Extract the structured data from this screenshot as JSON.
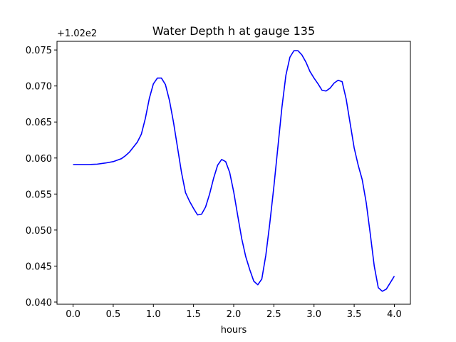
{
  "chart_data": {
    "type": "line",
    "title": "Water Depth h at gauge 135",
    "xlabel": "hours",
    "ylabel": "",
    "y_offset_text": "+1.02e2",
    "xlim": [
      -0.2,
      4.2
    ],
    "ylim": [
      0.0397,
      0.0762
    ],
    "xticks": [
      0.0,
      0.5,
      1.0,
      1.5,
      2.0,
      2.5,
      3.0,
      3.5,
      4.0
    ],
    "xtick_labels": [
      "0.0",
      "0.5",
      "1.0",
      "1.5",
      "2.0",
      "2.5",
      "3.0",
      "3.5",
      "4.0"
    ],
    "yticks": [
      0.04,
      0.045,
      0.05,
      0.055,
      0.06,
      0.065,
      0.07,
      0.075
    ],
    "ytick_labels": [
      "0.040",
      "0.045",
      "0.050",
      "0.055",
      "0.060",
      "0.065",
      "0.070",
      "0.075"
    ],
    "grid": false,
    "line_color": "#0000ff",
    "series": [
      {
        "x": [
          0.0,
          0.1,
          0.2,
          0.3,
          0.4,
          0.5,
          0.6,
          0.65,
          0.7,
          0.75,
          0.8,
          0.85,
          0.9,
          0.95,
          1.0,
          1.05,
          1.1,
          1.15,
          1.2,
          1.25,
          1.3,
          1.35,
          1.4,
          1.45,
          1.5,
          1.55,
          1.6,
          1.65,
          1.7,
          1.75,
          1.8,
          1.85,
          1.9,
          1.95,
          2.0,
          2.05,
          2.1,
          2.15,
          2.2,
          2.25,
          2.3,
          2.35,
          2.4,
          2.45,
          2.5,
          2.55,
          2.6,
          2.65,
          2.7,
          2.75,
          2.8,
          2.85,
          2.9,
          2.95,
          3.0,
          3.05,
          3.1,
          3.15,
          3.2,
          3.25,
          3.3,
          3.35,
          3.4,
          3.45,
          3.5,
          3.55,
          3.6,
          3.65,
          3.7,
          3.75,
          3.8,
          3.85,
          3.9,
          3.95,
          4.0
        ],
        "y": [
          0.0591,
          0.0591,
          0.0591,
          0.05915,
          0.0593,
          0.0595,
          0.0599,
          0.0603,
          0.0608,
          0.0615,
          0.0622,
          0.0633,
          0.0655,
          0.0683,
          0.0703,
          0.0711,
          0.0711,
          0.0702,
          0.068,
          0.065,
          0.0615,
          0.058,
          0.0552,
          0.054,
          0.053,
          0.0521,
          0.0522,
          0.0532,
          0.055,
          0.0572,
          0.059,
          0.0598,
          0.0595,
          0.058,
          0.0553,
          0.052,
          0.0488,
          0.0463,
          0.0445,
          0.0429,
          0.0424,
          0.0432,
          0.0465,
          0.051,
          0.056,
          0.0615,
          0.067,
          0.0715,
          0.074,
          0.0749,
          0.0749,
          0.0743,
          0.0733,
          0.072,
          0.0711,
          0.0703,
          0.0694,
          0.0693,
          0.0697,
          0.0704,
          0.0708,
          0.0706,
          0.0682,
          0.0648,
          0.0614,
          0.059,
          0.057,
          0.0538,
          0.0495,
          0.045,
          0.042,
          0.0415,
          0.0418,
          0.0427,
          0.0436
        ]
      }
    ]
  }
}
